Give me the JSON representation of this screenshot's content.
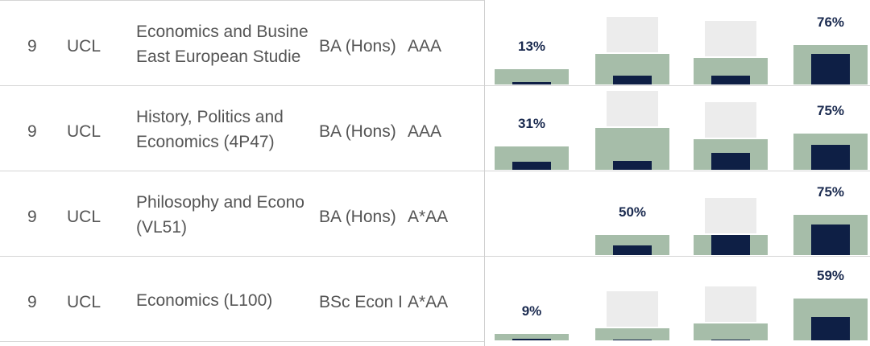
{
  "rows": [
    {
      "rank": "9",
      "university": "UCL",
      "course_line1": "Economics and Busine",
      "course_line2": "East European Studie",
      "degree": "BA (Hons)",
      "grades": "AAA",
      "bars": [
        {
          "pct": "13%",
          "outer": 0.2,
          "inner": 0.03
        },
        {
          "pct": "",
          "outer": 0.4,
          "inner": 0.12
        },
        {
          "pct": "",
          "outer": 0.35,
          "inner": 0.12
        },
        {
          "pct": "76%",
          "outer": 0.52,
          "inner": 0.4
        }
      ]
    },
    {
      "rank": "9",
      "university": "UCL",
      "course_line1": "History, Politics and",
      "course_line2": "Economics (4P47)",
      "degree": "BA (Hons)",
      "grades": "AAA",
      "bars": [
        {
          "pct": "31%",
          "outer": 0.3,
          "inner": 0.1
        },
        {
          "pct": "",
          "outer": 0.55,
          "inner": 0.12
        },
        {
          "pct": "",
          "outer": 0.4,
          "inner": 0.22
        },
        {
          "pct": "75%",
          "outer": 0.47,
          "inner": 0.33
        }
      ]
    },
    {
      "rank": "9",
      "university": "UCL",
      "course_line1": "Philosophy and Econo",
      "course_line2": "(VL51)",
      "degree": "BA (Hons)",
      "grades": "A*AA",
      "bars": [
        {
          "pct": "",
          "outer": 0.0,
          "inner": 0.0
        },
        {
          "pct": "50%",
          "outer": 0.26,
          "inner": 0.13
        },
        {
          "pct": "",
          "outer": 0.26,
          "inner": 0.26
        },
        {
          "pct": "75%",
          "outer": 0.53,
          "inner": 0.4
        }
      ]
    },
    {
      "rank": "9",
      "university": "UCL",
      "course_line1": "Economics (L100)",
      "course_line2": "",
      "degree": "BSc Econ I",
      "grades": "A*AA",
      "bars": [
        {
          "pct": "9%",
          "outer": 0.08,
          "inner": 0.02
        },
        {
          "pct": "",
          "outer": 0.16,
          "inner": 0.01
        },
        {
          "pct": "",
          "outer": 0.22,
          "inner": 0.01
        },
        {
          "pct": "59%",
          "outer": 0.55,
          "inner": 0.3
        }
      ]
    }
  ]
}
